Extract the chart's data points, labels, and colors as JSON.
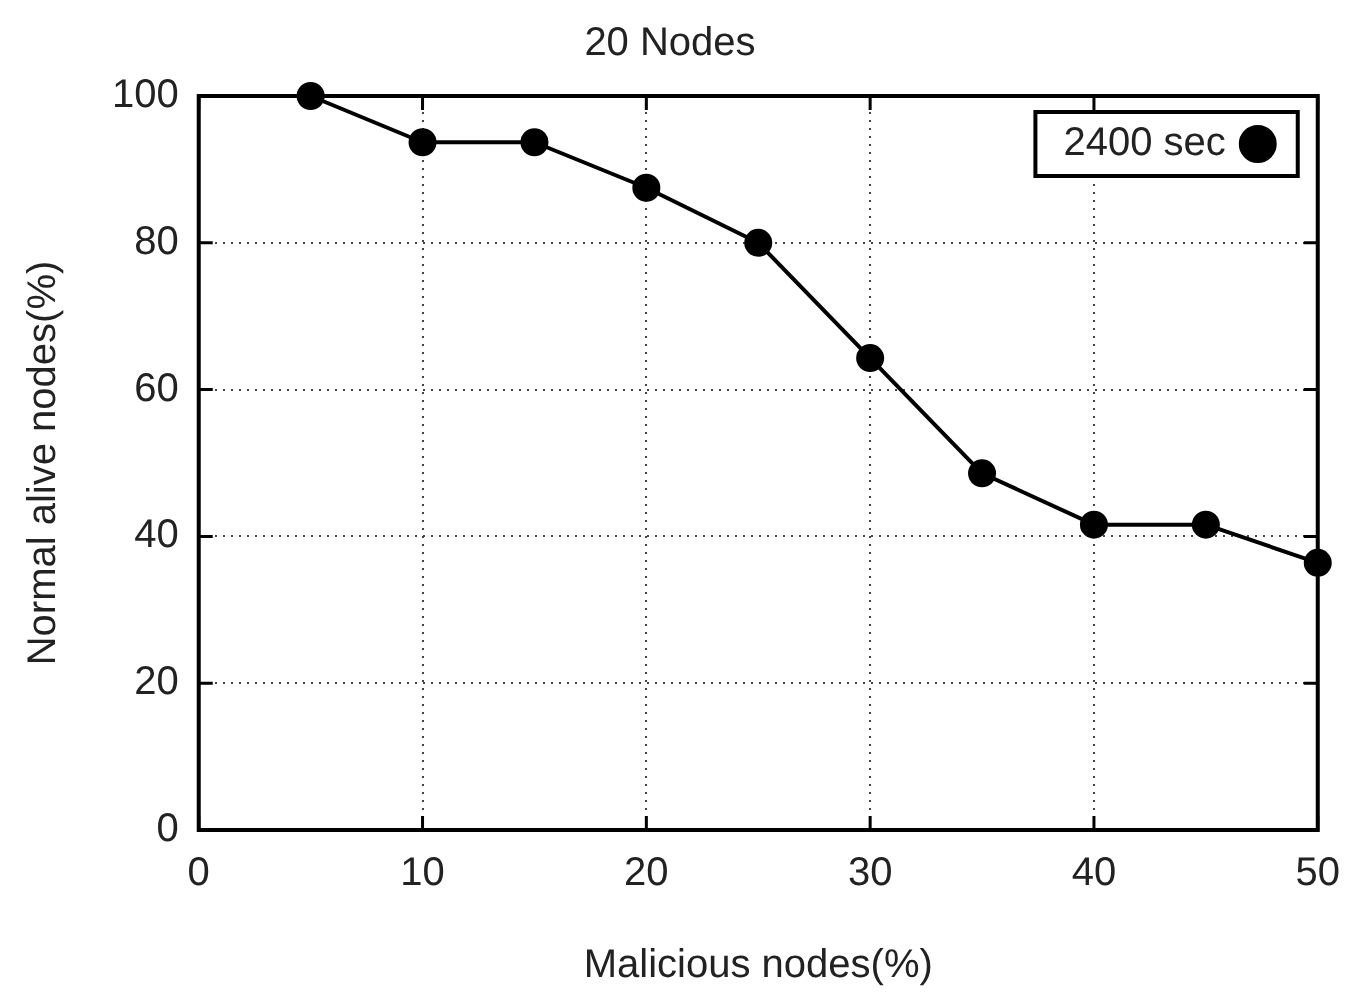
{
  "chart_data": {
    "type": "line",
    "title": "20 Nodes",
    "xlabel": "Malicious nodes(%)",
    "ylabel": "Normal alive nodes(%)",
    "x": [
      5,
      10,
      15,
      20,
      25,
      30,
      35,
      40,
      45,
      50
    ],
    "series": [
      {
        "name": "2400 sec",
        "color": "#000000",
        "values": [
          100,
          93.7,
          93.7,
          87.5,
          80,
          64.3,
          48.6,
          41.6,
          41.6,
          36.4
        ]
      }
    ],
    "xlim": [
      0,
      50
    ],
    "xticks": [
      0,
      10,
      20,
      30,
      40,
      50
    ],
    "ylim": [
      0,
      100
    ],
    "yticks": [
      0,
      20,
      40,
      60,
      80,
      100
    ],
    "grid": true,
    "legend": "top right",
    "marker": "circle",
    "line_style": "solid"
  }
}
